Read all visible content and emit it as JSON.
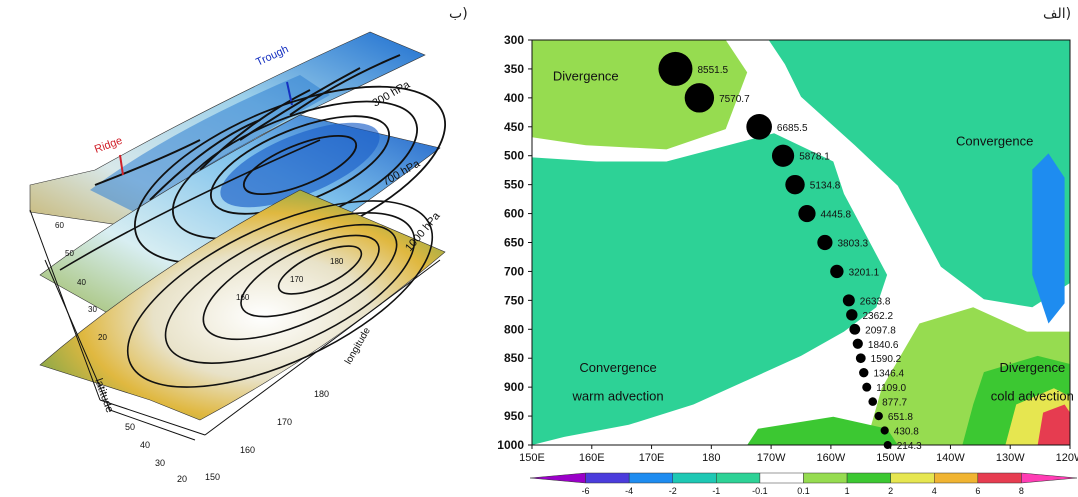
{
  "panel_labels": {
    "left": "ب)",
    "right": "الف)"
  },
  "diagram_3d": {
    "layers": [
      "300 hPa",
      "700 hPa",
      "1000 hPa"
    ],
    "annotations": {
      "trough": "Trough",
      "ridge": "Ridge"
    },
    "axis_titles": {
      "latitude": "latitude",
      "longitude": "longitude"
    },
    "lat_ticks": [
      "20",
      "30",
      "40",
      "50",
      "60"
    ],
    "lon_ticks": [
      "150",
      "160",
      "170",
      "180"
    ],
    "contour_labels": [
      "150",
      "160",
      "170",
      "180"
    ]
  },
  "chart_data": {
    "type": "heatmap",
    "title": "",
    "xlabel": "",
    "ylabel": "",
    "x_ticks": [
      "150E",
      "160E",
      "170E",
      "180",
      "170W",
      "160W",
      "150W",
      "140W",
      "130W",
      "120W"
    ],
    "y_ticks": [
      "300",
      "350",
      "400",
      "450",
      "500",
      "550",
      "600",
      "650",
      "700",
      "750",
      "800",
      "850",
      "900",
      "950",
      "1000"
    ],
    "ylim": [
      1000,
      300
    ],
    "y_reversed": true,
    "colorbar": {
      "ticks": [
        "-6",
        "-4",
        "-2",
        "-1",
        "-0.1",
        "0.1",
        "1",
        "2",
        "4",
        "6",
        "8"
      ],
      "colors": [
        "#9a00c8",
        "#4b3cdc",
        "#1e8cf0",
        "#1ec8b4",
        "#2dd296",
        "#ffffff",
        "#96dc50",
        "#3cc832",
        "#e6e650",
        "#f0b432",
        "#e63c50",
        "#ff3cb4"
      ]
    },
    "region_labels": [
      {
        "text": "Divergence"
      },
      {
        "text": "Convergence"
      },
      {
        "text": "Convergence"
      },
      {
        "text": "warm advection"
      },
      {
        "text": "Divergence"
      },
      {
        "text": "cold advection"
      }
    ],
    "points": [
      {
        "p": 350,
        "x": "174E",
        "value": "8551.5"
      },
      {
        "p": 400,
        "x": "178E",
        "value": "7570.7"
      },
      {
        "p": 450,
        "x": "172W",
        "value": "6685.5"
      },
      {
        "p": 500,
        "x": "168W",
        "value": "5878.1"
      },
      {
        "p": 550,
        "x": "166W",
        "value": "5134.8"
      },
      {
        "p": 600,
        "x": "164W",
        "value": "4445.8"
      },
      {
        "p": 650,
        "x": "161W",
        "value": "3803.3"
      },
      {
        "p": 700,
        "x": "159W",
        "value": "3201.1"
      },
      {
        "p": 750,
        "x": "157W",
        "value": "2633.8"
      },
      {
        "p": 775,
        "x": "156.5W",
        "value": "2362.2"
      },
      {
        "p": 800,
        "x": "156W",
        "value": "2097.8"
      },
      {
        "p": 825,
        "x": "155.5W",
        "value": "1840.6"
      },
      {
        "p": 850,
        "x": "155W",
        "value": "1590.2"
      },
      {
        "p": 875,
        "x": "154.5W",
        "value": "1346.4"
      },
      {
        "p": 900,
        "x": "154W",
        "value": "1109.0"
      },
      {
        "p": 925,
        "x": "153W",
        "value": "877.7"
      },
      {
        "p": 950,
        "x": "152W",
        "value": "651.8"
      },
      {
        "p": 975,
        "x": "151W",
        "value": "430.8"
      },
      {
        "p": 1000,
        "x": "150.5W",
        "value": "214.3"
      }
    ]
  }
}
